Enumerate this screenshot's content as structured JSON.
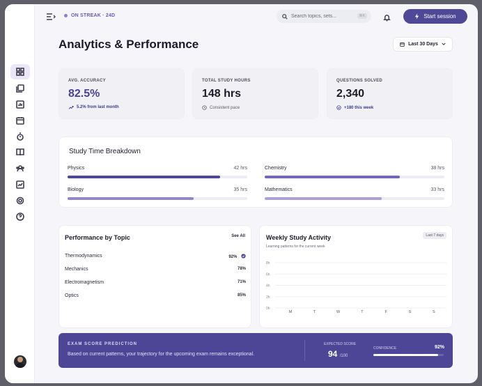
{
  "colors": {
    "accent": "#4e4896",
    "accent_text": "#4a4391",
    "bar_dark": "#4e4896",
    "bar_mid": "#7466ba",
    "bar_light": "#9486cc",
    "bar_lighter": "#ad9fd8",
    "positive": "#3b3b8a"
  },
  "topbar": {
    "streak": "ON STREAK · 24D",
    "search_placeholder": "Search topics, sets...",
    "search_shortcut": "⌘K",
    "start_button": "Start session"
  },
  "sidebar": {
    "items": [
      {
        "icon": "dashboard-icon",
        "active": true
      },
      {
        "icon": "library-icon",
        "active": false
      },
      {
        "icon": "chart-icon",
        "active": false
      },
      {
        "icon": "calendar-icon",
        "active": false
      },
      {
        "icon": "timer-icon",
        "active": false
      },
      {
        "icon": "book-icon",
        "active": false
      },
      {
        "icon": "users-icon",
        "active": false
      },
      {
        "icon": "report-icon",
        "active": false
      },
      {
        "icon": "settings-icon",
        "active": false
      },
      {
        "icon": "help-icon",
        "active": false
      }
    ]
  },
  "page": {
    "title": "Analytics & Performance",
    "range_label": "Last 30 Days"
  },
  "stats": [
    {
      "label": "AVG. ACCURACY",
      "value": "82.5%",
      "sub": "5.2% from last month",
      "sub_icon": "trend-up-icon"
    },
    {
      "label": "TOTAL STUDY HOURS",
      "value": "148 hrs",
      "sub": "Consistent pace",
      "sub_icon": "history-icon"
    },
    {
      "label": "QUESTIONS SOLVED",
      "value": "2,340",
      "sub": "+180 this week",
      "sub_icon": "check-circle-icon"
    }
  ],
  "breakdown": {
    "title": "Study Time Breakdown",
    "items": [
      {
        "name": "Physics",
        "hours_label": "42 hrs",
        "fraction": 0.85
      },
      {
        "name": "Chemistry",
        "hours_label": "38 hrs",
        "fraction": 0.75
      },
      {
        "name": "Biology",
        "hours_label": "35 hrs",
        "fraction": 0.7
      },
      {
        "name": "Mathematics",
        "hours_label": "33 hrs",
        "fraction": 0.65
      }
    ]
  },
  "topics": {
    "title": "Performance by Topic",
    "see_all": "See All",
    "rows": [
      {
        "name": "Thermodynamics",
        "pct": "92%",
        "verified": true
      },
      {
        "name": "Mechanics",
        "pct": "78%",
        "verified": false
      },
      {
        "name": "Electromagnetism",
        "pct": "71%",
        "verified": false
      },
      {
        "name": "Optics",
        "pct": "85%",
        "verified": false
      }
    ]
  },
  "weekly": {
    "title": "Weekly Study Activity",
    "subtitle": "Learning patterns for the current week",
    "badge": "Last 7 days",
    "chart_data": {
      "type": "bar",
      "categories": [
        "M",
        "T",
        "W",
        "T",
        "F",
        "S",
        "S"
      ],
      "values": [
        0,
        0,
        0,
        0,
        0,
        0,
        0
      ],
      "y_ticks": [
        "8h",
        "6h",
        "4h",
        "2h",
        "0h"
      ],
      "ylim": [
        0,
        8
      ],
      "grid": true
    }
  },
  "prediction": {
    "heading": "EXAM SCORE PREDICTION",
    "text": "Based on current patterns, your trajectory for the upcoming exam remains exceptional.",
    "expected_label": "EXPECTED SCORE",
    "expected_value": "94",
    "expected_total": "/100",
    "confidence_label": "CONFIDENCE",
    "confidence_value": "92%",
    "confidence_fraction": 0.92
  }
}
